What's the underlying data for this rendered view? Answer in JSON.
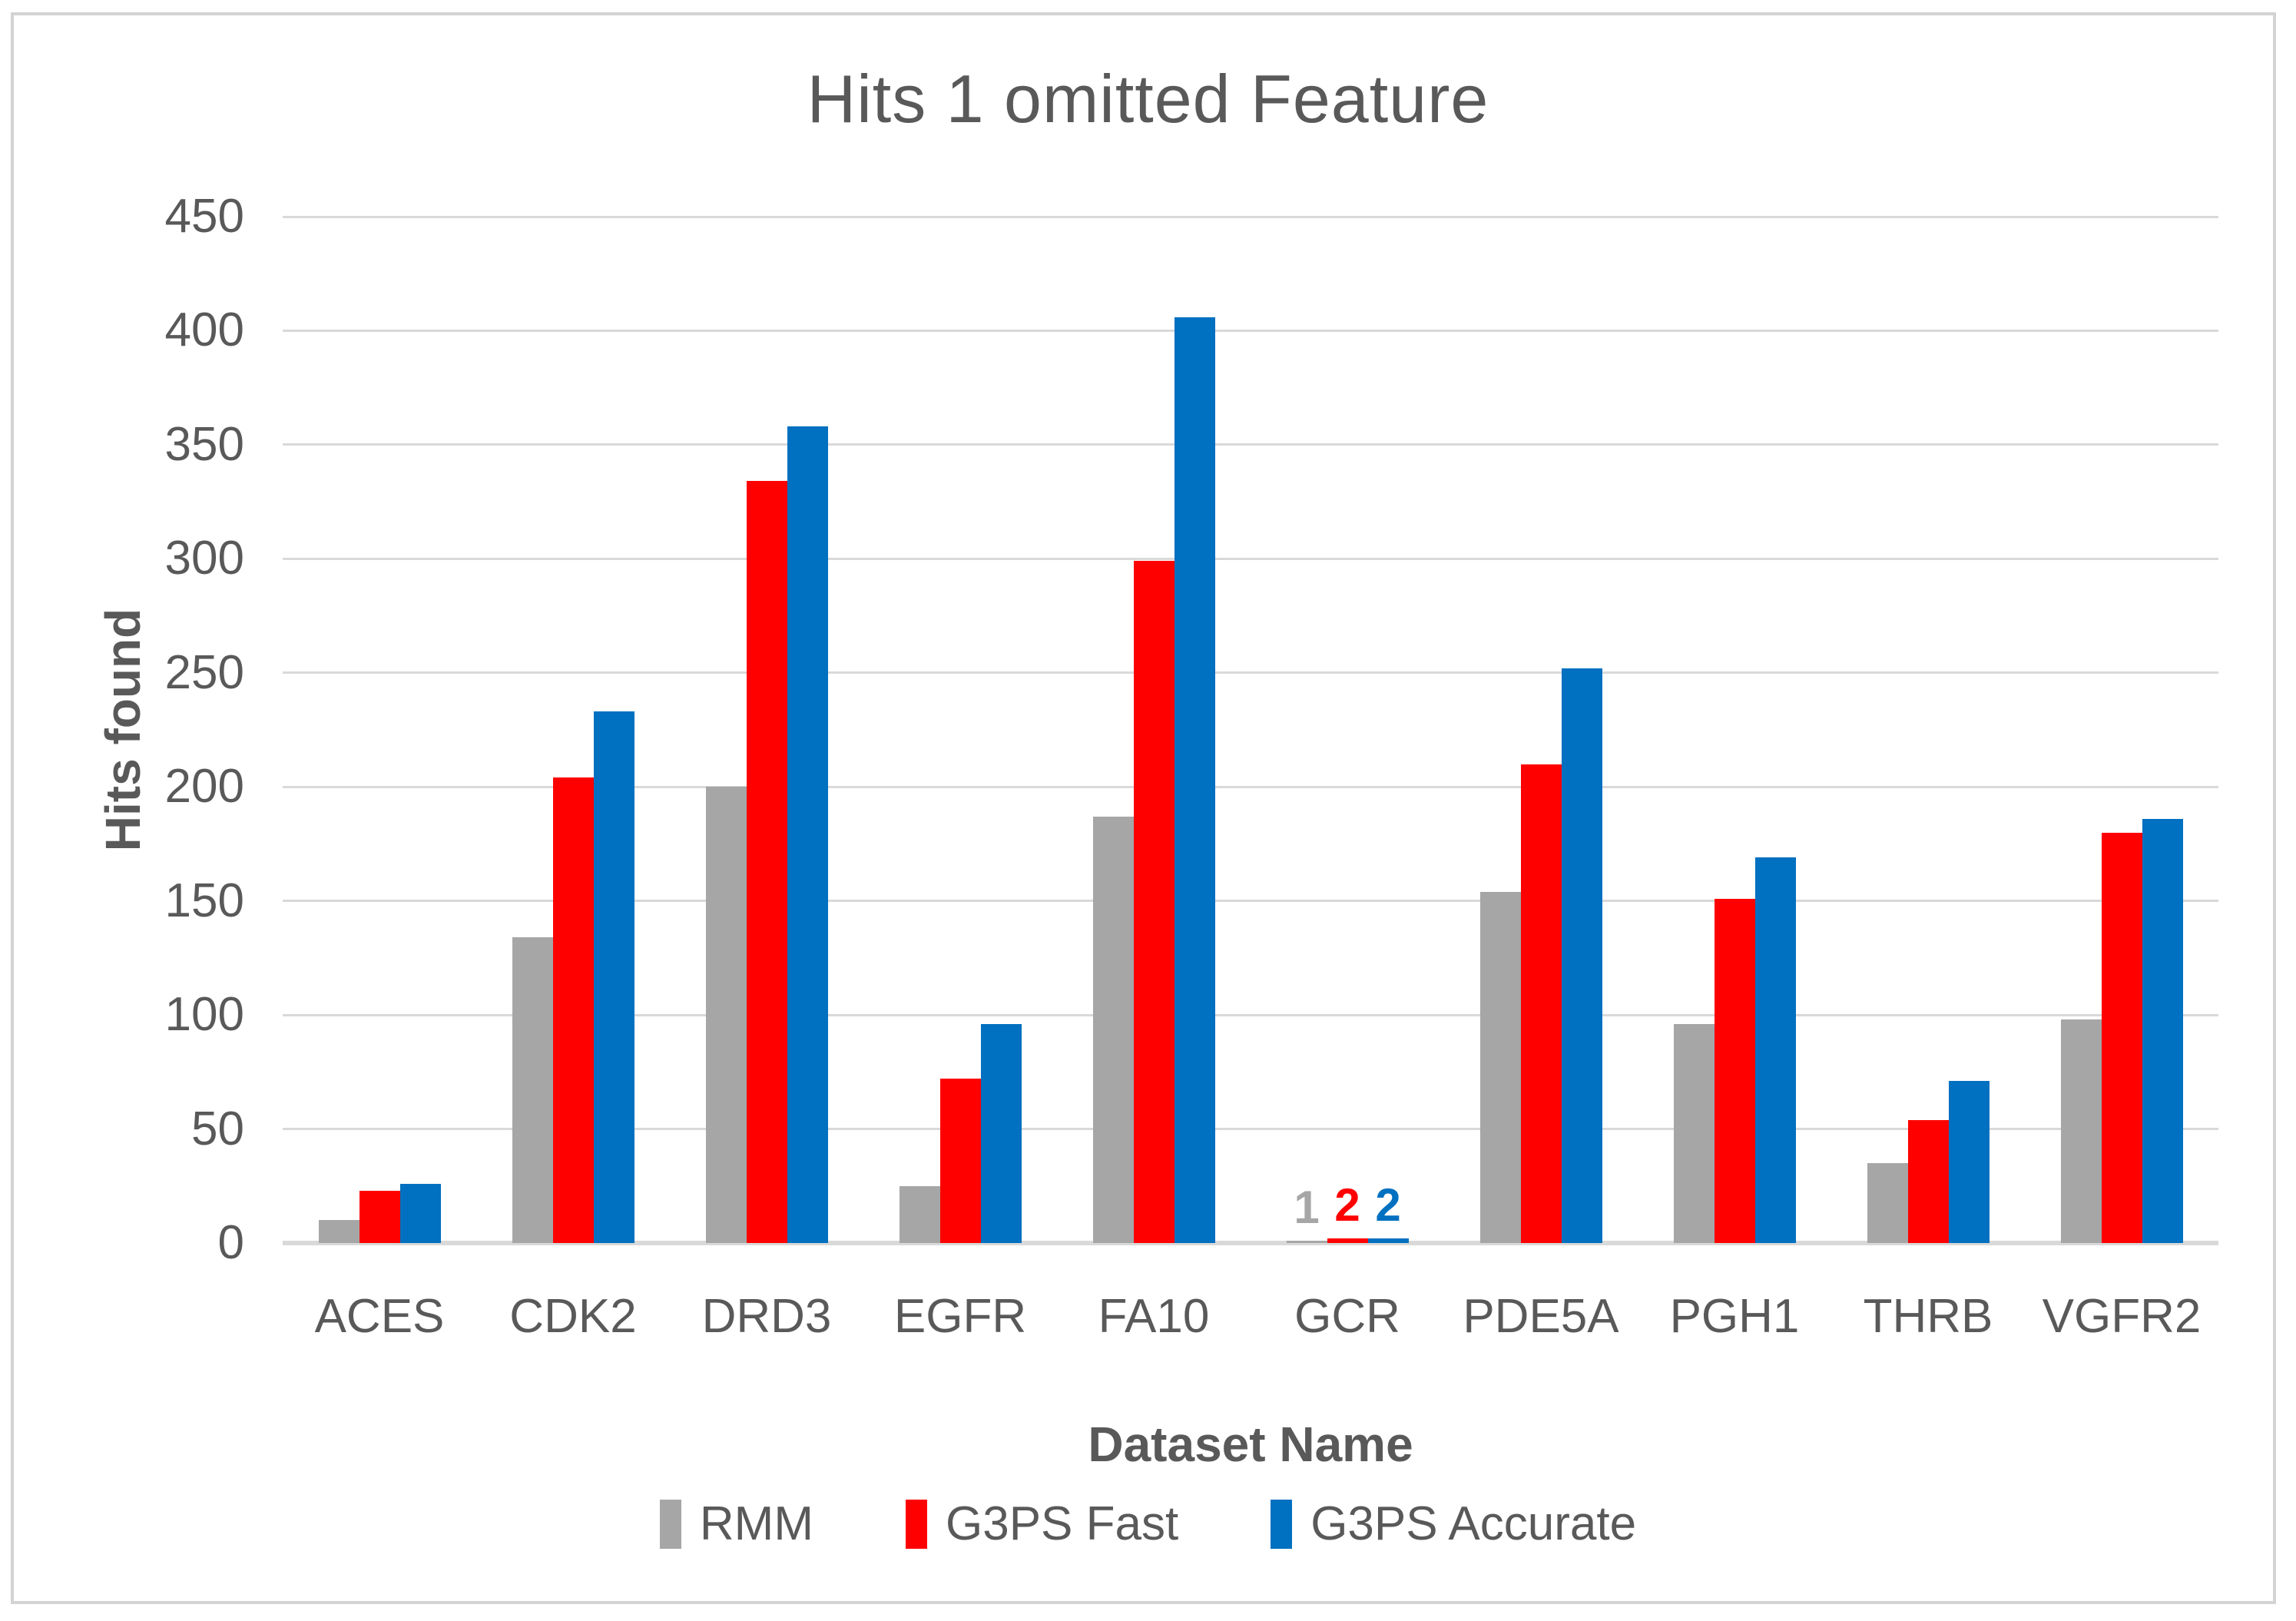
{
  "chart_data": {
    "type": "bar",
    "title": "Hits 1 omitted Feature",
    "xlabel": "Dataset Name",
    "ylabel": "Hits found",
    "ylim": [
      0,
      450
    ],
    "ytick_step": 50,
    "grid": true,
    "legend_position": "bottom",
    "categories": [
      "ACES",
      "CDK2",
      "DRD3",
      "EGFR",
      "FA10",
      "GCR",
      "PDE5A",
      "PGH1",
      "THRB",
      "VGFR2"
    ],
    "series": [
      {
        "name": "RMM",
        "color": "#A6A6A6",
        "values": [
          10,
          134,
          200,
          25,
          187,
          1,
          154,
          96,
          35,
          98
        ]
      },
      {
        "name": "G3PS Fast",
        "color": "#FF0000",
        "values": [
          23,
          204,
          334,
          72,
          299,
          2,
          210,
          151,
          54,
          180
        ]
      },
      {
        "name": "G3PS Accurate",
        "color": "#0070C0",
        "values": [
          26,
          233,
          358,
          96,
          406,
          2,
          252,
          169,
          71,
          186
        ]
      }
    ],
    "data_labels": {
      "category": "GCR",
      "values": [
        1,
        2,
        2
      ]
    },
    "colors": {
      "text": "#595959",
      "gridline": "#D9D9D9",
      "frame": "#D3D3D3"
    }
  }
}
